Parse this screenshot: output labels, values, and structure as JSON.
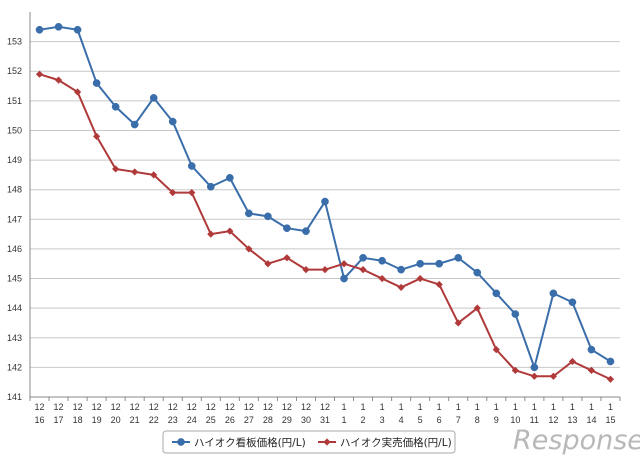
{
  "chart_data": {
    "type": "line",
    "categories": [
      [
        "12",
        "16"
      ],
      [
        "12",
        "17"
      ],
      [
        "12",
        "18"
      ],
      [
        "12",
        "19"
      ],
      [
        "12",
        "20"
      ],
      [
        "12",
        "21"
      ],
      [
        "12",
        "22"
      ],
      [
        "12",
        "23"
      ],
      [
        "12",
        "24"
      ],
      [
        "12",
        "25"
      ],
      [
        "12",
        "26"
      ],
      [
        "12",
        "27"
      ],
      [
        "12",
        "28"
      ],
      [
        "12",
        "29"
      ],
      [
        "12",
        "30"
      ],
      [
        "12",
        "31"
      ],
      [
        "1",
        "1"
      ],
      [
        "1",
        "2"
      ],
      [
        "1",
        "3"
      ],
      [
        "1",
        "4"
      ],
      [
        "1",
        "5"
      ],
      [
        "1",
        "6"
      ],
      [
        "1",
        "7"
      ],
      [
        "1",
        "8"
      ],
      [
        "1",
        "9"
      ],
      [
        "1",
        "10"
      ],
      [
        "1",
        "11"
      ],
      [
        "1",
        "12"
      ],
      [
        "1",
        "13"
      ],
      [
        "1",
        "14"
      ],
      [
        "1",
        "15"
      ]
    ],
    "ylim": [
      141,
      154
    ],
    "yticks": [
      141,
      142,
      143,
      144,
      145,
      146,
      147,
      148,
      149,
      150,
      151,
      152,
      153
    ],
    "grid": true,
    "legend_position": "bottom",
    "series": [
      {
        "name": "ハイオク看板価格(円/L)",
        "color": "#3a6eaa",
        "marker": "circle",
        "values": [
          153.4,
          153.5,
          153.4,
          151.6,
          150.8,
          150.2,
          151.1,
          150.3,
          148.8,
          148.1,
          148.4,
          147.2,
          147.1,
          146.7,
          146.6,
          147.6,
          145.0,
          145.7,
          145.6,
          145.3,
          145.5,
          145.5,
          145.7,
          145.2,
          144.5,
          143.8,
          142.0,
          144.5,
          144.2,
          142.6,
          142.2
        ]
      },
      {
        "name": "ハイオク実売価格(円/L)",
        "color": "#b0393a",
        "marker": "diamond",
        "values": [
          151.9,
          151.7,
          151.3,
          149.8,
          148.7,
          148.6,
          148.5,
          147.9,
          147.9,
          146.5,
          146.6,
          146.0,
          145.5,
          145.7,
          145.3,
          145.3,
          145.5,
          145.3,
          145.0,
          144.7,
          145.0,
          144.8,
          143.5,
          144.0,
          142.6,
          141.9,
          141.7,
          141.7,
          142.2,
          141.9,
          141.6
        ]
      }
    ]
  },
  "watermark": "Response."
}
